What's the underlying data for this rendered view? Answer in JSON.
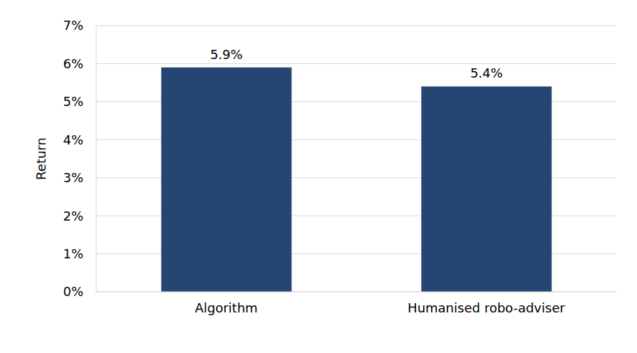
{
  "chart_data": {
    "type": "bar",
    "categories": [
      "Algorithm",
      "Humanised robo-adviser"
    ],
    "values": [
      5.9,
      5.4
    ],
    "value_labels": [
      "5.9%",
      "5.4%"
    ],
    "data_labels": true,
    "color": "#254673",
    "ylabel": "Return",
    "ylim": [
      0,
      7
    ],
    "yticks": [
      {
        "value": 0,
        "label": "0%"
      },
      {
        "value": 1,
        "label": "1%"
      },
      {
        "value": 2,
        "label": "2%"
      },
      {
        "value": 3,
        "label": "3%"
      },
      {
        "value": 4,
        "label": "4%"
      },
      {
        "value": 5,
        "label": "5%"
      },
      {
        "value": 6,
        "label": "6%"
      },
      {
        "value": 7,
        "label": "7%"
      }
    ],
    "grid": true
  }
}
